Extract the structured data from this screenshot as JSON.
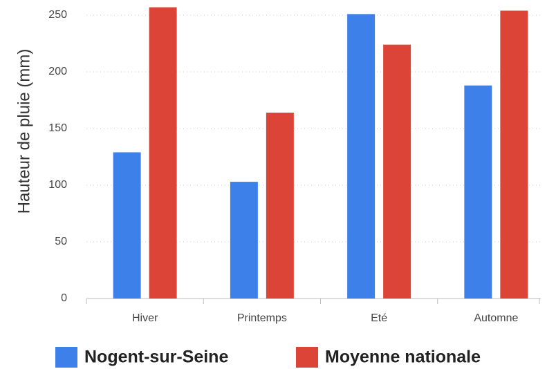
{
  "chart_data": {
    "type": "bar",
    "ylabel": "Hauteur de pluie (mm)",
    "categories": [
      "Hiver",
      "Printemps",
      "Eté",
      "Automne"
    ],
    "series": [
      {
        "name": "Nogent-sur-Seine",
        "color": "#3d80ea",
        "values": [
          129,
          103,
          251,
          188
        ]
      },
      {
        "name": "Moyenne nationale",
        "color": "#db4437",
        "values": [
          257,
          164,
          224,
          254
        ]
      }
    ],
    "ylim": [
      0,
      260
    ],
    "yticks": [
      0,
      50,
      100,
      150,
      200,
      250
    ],
    "grid": true,
    "legend": "bottom"
  }
}
